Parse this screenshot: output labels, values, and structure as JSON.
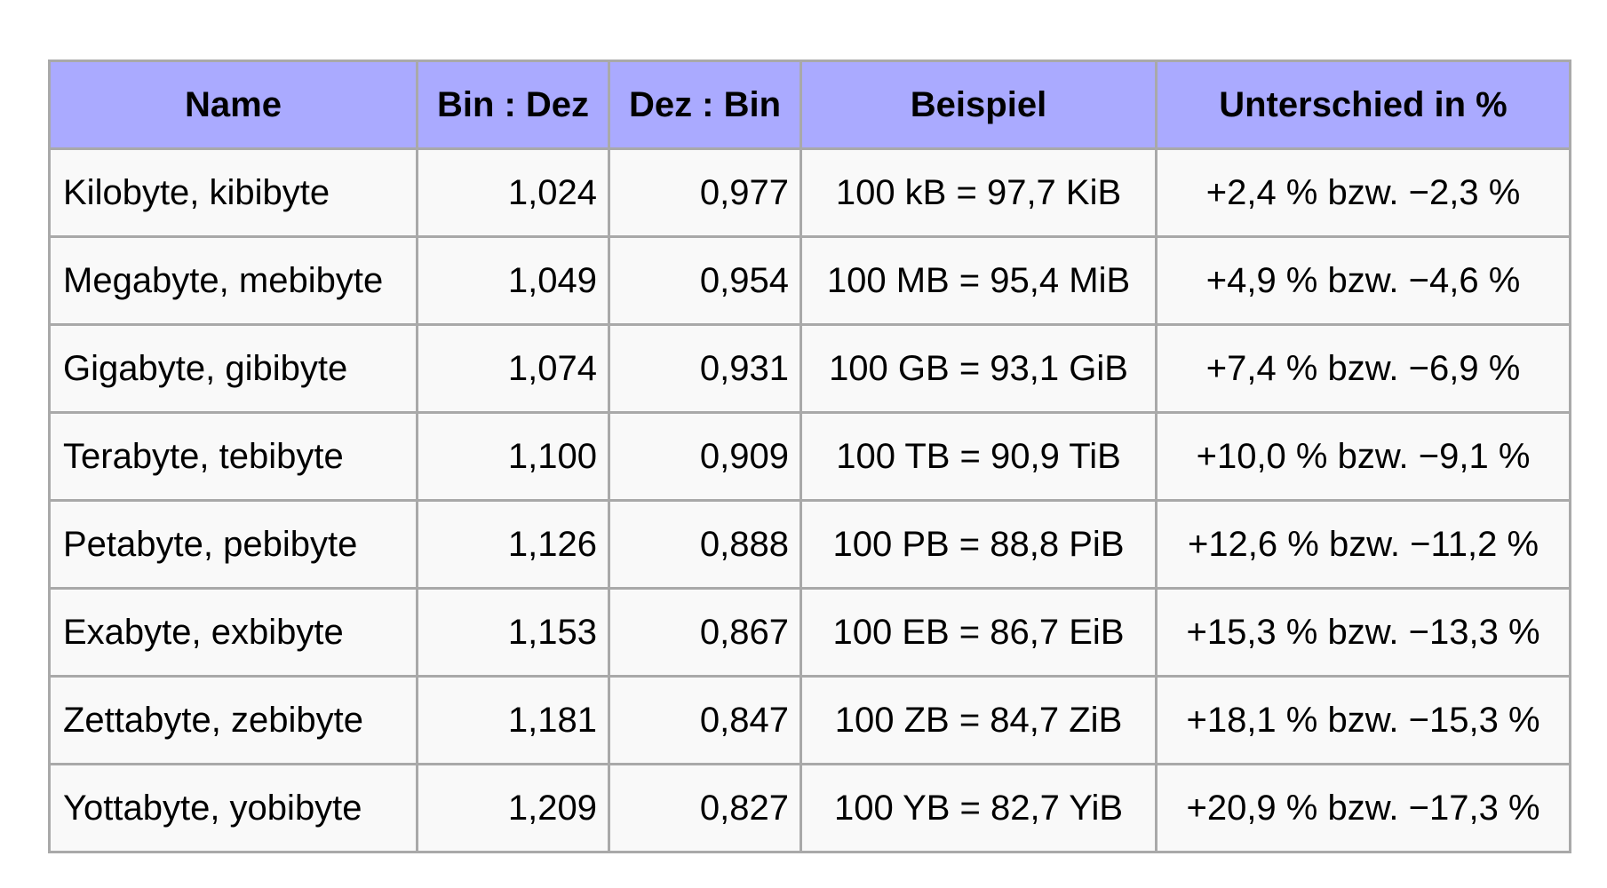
{
  "table": {
    "headers": [
      "Name",
      "Bin : Dez",
      "Dez : Bin",
      "Beispiel",
      "Unterschied in %"
    ],
    "rows": [
      {
        "name": "Kilobyte, kibibyte",
        "bin_dez": "1,024",
        "dez_bin": "0,977",
        "example": "100 kB = 97,7 KiB",
        "diff": "+2,4 % bzw. −2,3 %"
      },
      {
        "name": "Megabyte, mebibyte",
        "bin_dez": "1,049",
        "dez_bin": "0,954",
        "example": "100 MB = 95,4 MiB",
        "diff": "+4,9 % bzw. −4,6 %"
      },
      {
        "name": "Gigabyte, gibibyte",
        "bin_dez": "1,074",
        "dez_bin": "0,931",
        "example": "100 GB = 93,1 GiB",
        "diff": "+7,4 % bzw. −6,9 %"
      },
      {
        "name": "Terabyte, tebibyte",
        "bin_dez": "1,100",
        "dez_bin": "0,909",
        "example": "100 TB = 90,9 TiB",
        "diff": "+10,0 % bzw. −9,1 %"
      },
      {
        "name": "Petabyte, pebibyte",
        "bin_dez": "1,126",
        "dez_bin": "0,888",
        "example": "100 PB = 88,8 PiB",
        "diff": "+12,6 % bzw. −11,2 %"
      },
      {
        "name": "Exabyte, exbibyte",
        "bin_dez": "1,153",
        "dez_bin": "0,867",
        "example": "100 EB = 86,7 EiB",
        "diff": "+15,3 % bzw. −13,3 %"
      },
      {
        "name": "Zettabyte, zebibyte",
        "bin_dez": "1,181",
        "dez_bin": "0,847",
        "example": "100 ZB = 84,7 ZiB",
        "diff": "+18,1 % bzw. −15,3 %"
      },
      {
        "name": "Yottabyte, yobibyte",
        "bin_dez": "1,209",
        "dez_bin": "0,827",
        "example": "100 YB = 82,7 YiB",
        "diff": "+20,9 % bzw. −17,3 %"
      }
    ]
  },
  "colors": {
    "header_bg": "#aaaaff",
    "cell_bg": "#f9f9f9",
    "border": "#a9a9a9"
  }
}
